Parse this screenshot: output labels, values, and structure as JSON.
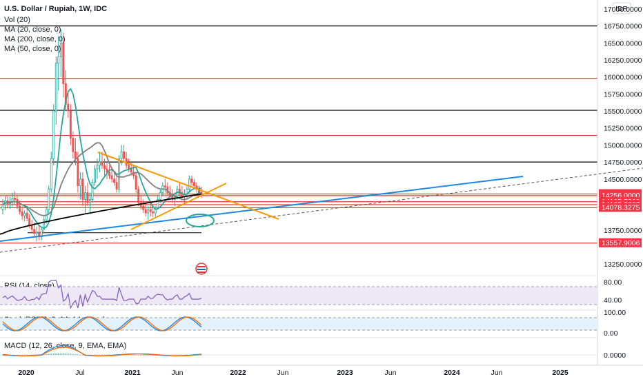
{
  "chart_data": {
    "type": "candlestick",
    "title": "U.S. Dollar / Rupiah, 1W, IDC",
    "currency": "IDR",
    "indicator_labels": [
      "Vol (20)",
      "MA (20, close, 0)",
      "MA (200, close, 0)",
      "MA (50, close, 0)"
    ],
    "price_axis": {
      "range": [
        13100,
        17050
      ],
      "ticks": [
        "17000.0000",
        "16750.0000",
        "16500.0000",
        "16250.0000",
        "16000.0000",
        "15750.0000",
        "15500.0000",
        "15250.0000",
        "15000.0000",
        "14750.0000",
        "14500.0000",
        "14279.7199",
        "14256.0000",
        "14165.7268",
        "14123.3267",
        "14078.3275",
        "13750.0000",
        "13557.9006",
        "13250.0000"
      ],
      "tick_values": [
        17000,
        16750,
        16500,
        16250,
        16000,
        15750,
        15500,
        15250,
        15000,
        14750,
        14500,
        13750,
        13250
      ]
    },
    "time_axis": {
      "labels": [
        "2020",
        "Jul",
        "2021",
        "Jun",
        "2022",
        "Jun",
        "2023",
        "Jun",
        "2024",
        "Jun",
        "2025"
      ]
    },
    "price_tags": [
      {
        "text": "14279.7199",
        "value": 14279.7199,
        "color": "#f23645"
      },
      {
        "text": "14256.0000",
        "value": 14256.0,
        "color": "#f23645"
      },
      {
        "text": "14165.7268",
        "value": 14165.7268,
        "color": "#f23645"
      },
      {
        "text": "14123.3267",
        "value": 14123.3267,
        "color": "#f23645"
      },
      {
        "text": "14078.3275",
        "value": 14078.3275,
        "color": "#f23645"
      },
      {
        "text": "13557.9006",
        "value": 13557.9006,
        "color": "#f23645"
      }
    ],
    "horizontal_levels": [
      {
        "value": 16750,
        "color": "#000000"
      },
      {
        "value": 15980,
        "color": "#e53935"
      },
      {
        "value": 15510,
        "color": "#000000"
      },
      {
        "value": 15140,
        "color": "#e53935"
      },
      {
        "value": 14750,
        "color": "#000000"
      },
      {
        "value": 14280,
        "color": "#e53935"
      },
      {
        "value": 14256,
        "color": "#e53935"
      },
      {
        "value": 14166,
        "color": "#e53935"
      },
      {
        "value": 14123,
        "color": "#e53935"
      },
      {
        "value": 14078,
        "color": "#e53935"
      },
      {
        "value": 13558,
        "color": "#e53935"
      }
    ],
    "price_series": [
      [
        14050,
        14200,
        13980,
        14120
      ],
      [
        14120,
        14260,
        14040,
        14180
      ],
      [
        14180,
        14260,
        14080,
        14140
      ],
      [
        14140,
        14240,
        14060,
        14160
      ],
      [
        14160,
        14300,
        14100,
        14220
      ],
      [
        14220,
        14320,
        14120,
        14200
      ],
      [
        14200,
        14260,
        14060,
        14100
      ],
      [
        14100,
        14180,
        13980,
        14020
      ],
      [
        14020,
        14100,
        13900,
        13960
      ],
      [
        13960,
        14040,
        13880,
        14000
      ],
      [
        14000,
        14060,
        13880,
        13920
      ],
      [
        13920,
        13980,
        13780,
        13820
      ],
      [
        13820,
        13900,
        13700,
        13760
      ],
      [
        13760,
        13860,
        13650,
        13700
      ],
      [
        13700,
        13800,
        13580,
        13720
      ],
      [
        13720,
        13820,
        13600,
        13650
      ],
      [
        13650,
        13780,
        13600,
        13760
      ],
      [
        13760,
        13950,
        13700,
        13900
      ],
      [
        13900,
        14100,
        13850,
        14050
      ],
      [
        14050,
        14400,
        14000,
        14350
      ],
      [
        14350,
        14900,
        14300,
        14800
      ],
      [
        14800,
        15600,
        14700,
        15500
      ],
      [
        15500,
        16300,
        15300,
        16200
      ],
      [
        16200,
        16600,
        15800,
        16300
      ],
      [
        16300,
        16700,
        16000,
        16500
      ],
      [
        16500,
        16650,
        15700,
        15900
      ],
      [
        15900,
        16100,
        15500,
        15600
      ],
      [
        15600,
        15800,
        15400,
        15500
      ],
      [
        15500,
        15600,
        15000,
        15100
      ],
      [
        15100,
        15200,
        14800,
        14900
      ],
      [
        14900,
        15100,
        14700,
        14800
      ],
      [
        14800,
        14900,
        14300,
        14400
      ],
      [
        14400,
        14600,
        14200,
        14500
      ],
      [
        14500,
        14600,
        14100,
        14200
      ],
      [
        14200,
        14400,
        14000,
        14300
      ],
      [
        14300,
        14450,
        14100,
        14150
      ],
      [
        14150,
        14300,
        14000,
        14200
      ],
      [
        14200,
        14500,
        14150,
        14450
      ],
      [
        14450,
        14700,
        14400,
        14650
      ],
      [
        14650,
        14800,
        14500,
        14700
      ],
      [
        14700,
        14900,
        14600,
        14750
      ],
      [
        14750,
        14900,
        14650,
        14700
      ],
      [
        14700,
        14800,
        14550,
        14650
      ],
      [
        14650,
        14750,
        14500,
        14600
      ],
      [
        14600,
        14700,
        14500,
        14550
      ],
      [
        14550,
        14650,
        14450,
        14500
      ],
      [
        14500,
        14600,
        14400,
        14450
      ],
      [
        14450,
        14550,
        14300,
        14350
      ],
      [
        14350,
        14850,
        14300,
        14800
      ],
      [
        14800,
        15000,
        14700,
        14900
      ],
      [
        14900,
        15000,
        14750,
        14800
      ],
      [
        14800,
        14900,
        14650,
        14700
      ],
      [
        14700,
        14800,
        14600,
        14650
      ],
      [
        14650,
        14750,
        14550,
        14600
      ],
      [
        14600,
        14700,
        14500,
        14550
      ],
      [
        14550,
        14600,
        14300,
        14350
      ],
      [
        14350,
        14400,
        14100,
        14150
      ],
      [
        14150,
        14250,
        14050,
        14100
      ],
      [
        14100,
        14200,
        14000,
        14050
      ],
      [
        14050,
        14150,
        13950,
        14000
      ],
      [
        14000,
        14100,
        13900,
        14050
      ],
      [
        14050,
        14150,
        13950,
        14020
      ],
      [
        14020,
        14120,
        13940,
        14000
      ],
      [
        14000,
        14100,
        13950,
        14080
      ],
      [
        14080,
        14250,
        14050,
        14200
      ],
      [
        14200,
        14350,
        14150,
        14300
      ],
      [
        14300,
        14450,
        14250,
        14400
      ],
      [
        14400,
        14500,
        14300,
        14380
      ],
      [
        14380,
        14450,
        14250,
        14300
      ],
      [
        14300,
        14400,
        14200,
        14250
      ],
      [
        14250,
        14350,
        14150,
        14200
      ],
      [
        14200,
        14300,
        14100,
        14250
      ],
      [
        14250,
        14400,
        14200,
        14350
      ],
      [
        14350,
        14450,
        14250,
        14300
      ],
      [
        14300,
        14400,
        14200,
        14250
      ],
      [
        14250,
        14350,
        14150,
        14280
      ],
      [
        14280,
        14400,
        14200,
        14350
      ],
      [
        14350,
        14550,
        14300,
        14500
      ],
      [
        14500,
        14550,
        14400,
        14450
      ],
      [
        14450,
        14500,
        14350,
        14400
      ],
      [
        14400,
        14450,
        14300,
        14350
      ],
      [
        14350,
        14400,
        14250,
        14300
      ],
      [
        14300,
        14380,
        14220,
        14280
      ]
    ],
    "pane_labels": {
      "rsi": "RSI (14, close)",
      "stoch": "Stoch RSI (3, 3, 14, 14, close)",
      "macd": "MACD (12, 26, close, 9, EMA, EMA)"
    },
    "rsi_axis": [
      "80.00",
      "40.00"
    ],
    "stoch_axis": [
      "100.00",
      "0.00"
    ],
    "macd_axis": [
      "0.0000"
    ],
    "colors": {
      "up": "#26a69a",
      "down": "#ef5350",
      "ma20": "#26a69a",
      "ma50": "#808080",
      "ma200": "#000000",
      "trend_blue": "#1e88e5",
      "trend_orange": "#ff9800",
      "rsi_line": "#7e57c2",
      "rsi_band": "#ede7f6",
      "stoch_k": "#1e88e5",
      "stoch_d": "#ff6d00",
      "stoch_band": "#e3f2fd",
      "macd_line": "#1e88e5",
      "signal_line": "#ff6d00"
    }
  }
}
